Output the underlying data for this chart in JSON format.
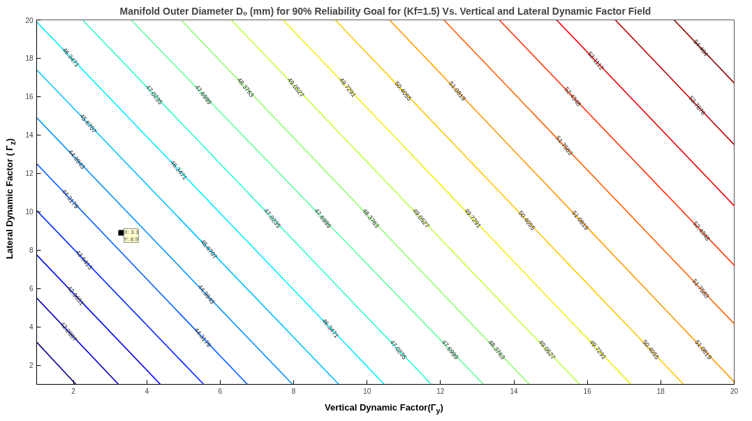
{
  "chart_data": {
    "type": "line",
    "title": "Manifold Outer Diameter Dₒ (mm) for 90% Reliability Goal for (Kf=1.5) Vs. Vertical and Lateral Dynamic Factor Field",
    "xlabel": "Vertical Dynamic Factor(Γ$_{y}$)",
    "ylabel": "Lateral Dynamic Factor ( Γ$_{z}$)",
    "xlim": [
      1,
      20
    ],
    "ylim": [
      1,
      20
    ],
    "xticks": [
      2,
      4,
      6,
      8,
      10,
      12,
      14,
      16,
      18,
      20
    ],
    "yticks": [
      2,
      4,
      6,
      8,
      10,
      12,
      14,
      16,
      18,
      20
    ],
    "grid": false,
    "series": [
      {
        "color": "#00008f",
        "x": [
          1,
          2.07
        ],
        "values": [
          3.2,
          1
        ]
      },
      {
        "color": "#0000b8",
        "x": [
          1,
          3.23
        ],
        "values": [
          5.5,
          1
        ]
      },
      {
        "color": "#0000e8",
        "x": [
          1,
          4.37
        ],
        "values": [
          7.75,
          1
        ]
      },
      {
        "color": "#0028ff",
        "x": [
          1,
          5.55
        ],
        "values": [
          10.06,
          1
        ]
      },
      {
        "color": "#0060ff",
        "x": [
          1,
          6.74
        ],
        "values": [
          12.5,
          1
        ]
      },
      {
        "color": "#0090ff",
        "x": [
          1,
          7.97
        ],
        "values": [
          14.9,
          1
        ]
      },
      {
        "color": "#00c0ff",
        "x": [
          1,
          9.23
        ],
        "values": [
          17.4,
          1
        ]
      },
      {
        "color": "#00f0ff",
        "x": [
          1,
          10.47
        ],
        "values": [
          19.9,
          1
        ]
      },
      {
        "color": "#30ffd0",
        "x": [
          2.25,
          11.75
        ],
        "values": [
          20,
          1
        ]
      },
      {
        "color": "#60ffa0",
        "x": [
          3.57,
          13.17
        ],
        "values": [
          20,
          1
        ]
      },
      {
        "color": "#90ff70",
        "x": [
          4.93,
          14.42
        ],
        "values": [
          20,
          1
        ]
      },
      {
        "color": "#c0ff40",
        "x": [
          6.3,
          15.79
        ],
        "values": [
          20,
          1
        ]
      },
      {
        "color": "#f0f010",
        "x": [
          7.71,
          17.19
        ],
        "values": [
          20,
          1
        ]
      },
      {
        "color": "#ffc800",
        "x": [
          9.13,
          18.62
        ],
        "values": [
          20,
          1
        ]
      },
      {
        "color": "#ff9800",
        "x": [
          10.61,
          20
        ],
        "values": [
          20,
          1.13
        ]
      },
      {
        "color": "#ff6000",
        "x": [
          12.09,
          20
        ],
        "values": [
          20,
          4.16
        ]
      },
      {
        "color": "#ff3000",
        "x": [
          13.6,
          20
        ],
        "values": [
          20,
          7.21
        ]
      },
      {
        "color": "#e80000",
        "x": [
          15.16,
          20
        ],
        "values": [
          20,
          10.31
        ]
      },
      {
        "color": "#b80000",
        "x": [
          16.76,
          20
        ],
        "values": [
          20,
          13.5
        ]
      },
      {
        "color": "#8f0000",
        "x": [
          18.36,
          20
        ],
        "values": [
          20,
          16.71
        ]
      },
      {
        "type": "scatter",
        "marker": "square",
        "color": "#000000",
        "x": [
          3.3
        ],
        "values": [
          8.9
        ]
      }
    ],
    "annotations": [
      {
        "text": "46.3471",
        "x": 1.93,
        "y": 18.05
      },
      {
        "text": "47.0235",
        "x": 4.2,
        "y": 16.1
      },
      {
        "text": "47.6999",
        "x": 5.54,
        "y": 16.1
      },
      {
        "text": "48.3763",
        "x": 6.69,
        "y": 16.48
      },
      {
        "text": "49.0527",
        "x": 8.06,
        "y": 16.48
      },
      {
        "text": "49.7291",
        "x": 9.47,
        "y": 16.48
      },
      {
        "text": "50.4055",
        "x": 10.98,
        "y": 16.29
      },
      {
        "text": "51.0819",
        "x": 12.46,
        "y": 16.29
      },
      {
        "text": "52.4348",
        "x": 15.6,
        "y": 16.0
      },
      {
        "text": "53.1112",
        "x": 16.23,
        "y": 17.87
      },
      {
        "text": "54.464",
        "x": 19.09,
        "y": 18.54
      },
      {
        "text": "53.7876",
        "x": 18.99,
        "y": 15.54
      },
      {
        "text": "51.7583",
        "x": 15.37,
        "y": 13.45
      },
      {
        "text": "45.6707",
        "x": 2.4,
        "y": 14.6
      },
      {
        "text": "44.9943",
        "x": 2.09,
        "y": 12.73
      },
      {
        "text": "44.3179",
        "x": 1.91,
        "y": 10.67
      },
      {
        "text": "43.6415",
        "x": 2.29,
        "y": 7.49
      },
      {
        "text": "42.9651",
        "x": 2.06,
        "y": 5.62
      },
      {
        "text": "42.2887",
        "x": 1.87,
        "y": 3.75
      },
      {
        "text": "46.3471",
        "x": 4.87,
        "y": 12.17
      },
      {
        "text": "47.0235",
        "x": 7.42,
        "y": 9.66
      },
      {
        "text": "47.6999",
        "x": 8.79,
        "y": 9.66
      },
      {
        "text": "48.3763",
        "x": 10.1,
        "y": 9.66
      },
      {
        "text": "49.0527",
        "x": 11.47,
        "y": 9.66
      },
      {
        "text": "49.7291",
        "x": 12.88,
        "y": 9.66
      },
      {
        "text": "50.4055",
        "x": 14.35,
        "y": 9.55
      },
      {
        "text": "51.0819",
        "x": 15.81,
        "y": 9.55
      },
      {
        "text": "52.4348",
        "x": 19.11,
        "y": 8.99
      },
      {
        "text": "45.6707",
        "x": 5.69,
        "y": 8.05
      },
      {
        "text": "44.9943",
        "x": 5.62,
        "y": 5.69
      },
      {
        "text": "44.3179",
        "x": 5.52,
        "y": 3.45
      },
      {
        "text": "46.3471",
        "x": 9.0,
        "y": 3.93
      },
      {
        "text": "47.0235",
        "x": 10.85,
        "y": 2.81
      },
      {
        "text": "47.6999",
        "x": 12.26,
        "y": 2.81
      },
      {
        "text": "48.3763",
        "x": 13.53,
        "y": 2.81
      },
      {
        "text": "49.0527",
        "x": 14.9,
        "y": 2.81
      },
      {
        "text": "49.7291",
        "x": 16.29,
        "y": 2.81
      },
      {
        "text": "50.4055",
        "x": 17.73,
        "y": 2.81
      },
      {
        "text": "51.0819",
        "x": 19.16,
        "y": 2.81
      },
      {
        "text": "51.7583",
        "x": 19.09,
        "y": 5.99
      },
      {
        "text": "X: 3.3\nY: 8.9",
        "x": 3.3,
        "y": 8.9
      }
    ]
  }
}
